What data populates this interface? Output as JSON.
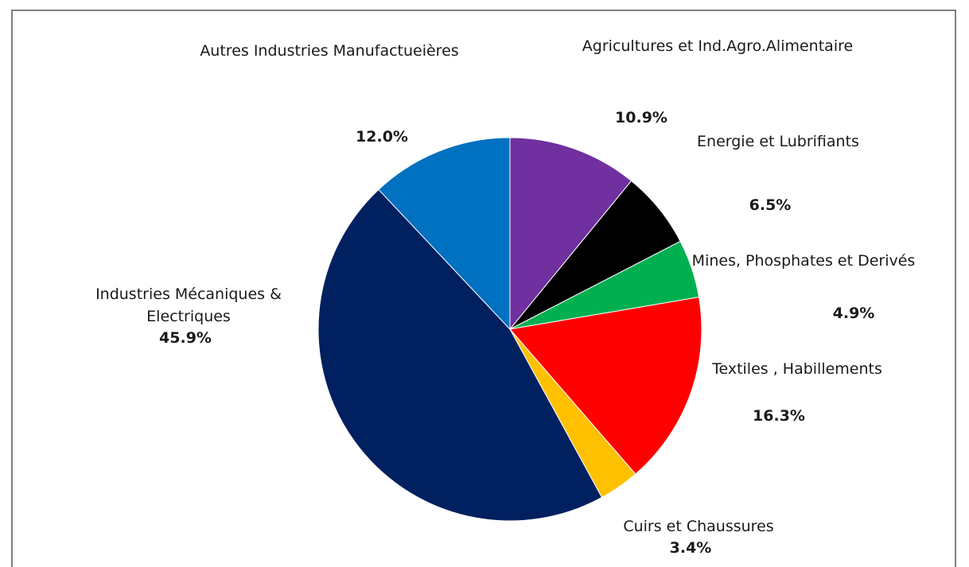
{
  "chart_data": {
    "type": "pie",
    "start_angle_deg": 0,
    "direction": "clockwise",
    "slices": [
      {
        "name": "Agricultures et Ind.Agro.Alimentaire",
        "name_lines": [
          "Agricultures et Ind.Agro.Alimentaire"
        ],
        "value": 10.9,
        "label": "10.9%",
        "color": "#7030A0"
      },
      {
        "name": "Energie et Lubrifiants",
        "name_lines": [
          "Energie et Lubrifiants"
        ],
        "value": 6.5,
        "label": "6.5%",
        "color": "#000000"
      },
      {
        "name": "Mines, Phosphates et Derivés",
        "name_lines": [
          "Mines, Phosphates et Derivés"
        ],
        "value": 4.9,
        "label": "4.9%",
        "color": "#00B050"
      },
      {
        "name": "Textiles , Habillements",
        "name_lines": [
          "Textiles , Habillements"
        ],
        "value": 16.3,
        "label": "16.3%",
        "color": "#FF0000"
      },
      {
        "name": "Cuirs  et Chaussures",
        "name_lines": [
          "Cuirs  et Chaussures"
        ],
        "value": 3.4,
        "label": "3.4%",
        "color": "#FFC000"
      },
      {
        "name": "Industries Mécaniques & Electriques",
        "name_lines": [
          "Industries Mécaniques &",
          "Electriques"
        ],
        "value": 45.9,
        "label": "45.9%",
        "color": "#002060"
      },
      {
        "name": "Autres Industries Manufactueières",
        "name_lines": [
          "Autres Industries Manufactueières"
        ],
        "value": 12.0,
        "label": "12.0%",
        "color": "#0070C0"
      }
    ]
  }
}
